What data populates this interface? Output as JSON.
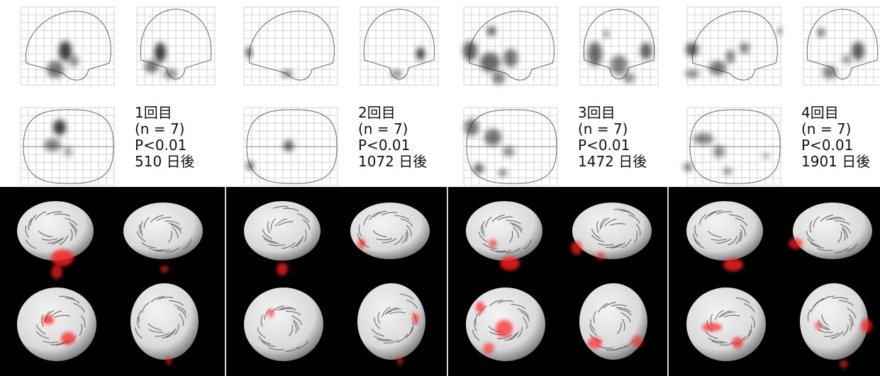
{
  "sessions": [
    {
      "session_label": "1回目",
      "n_label": "(n = 7)",
      "p_label": "P<0.01",
      "days_label": "510 日後"
    },
    {
      "session_label": "2回目",
      "n_label": "(n = 7)",
      "p_label": "P<0.01",
      "days_label": "1072 日後"
    },
    {
      "session_label": "3回目",
      "n_label": "(n = 7)",
      "p_label": "P<0.01",
      "days_label": "1472 日後"
    },
    {
      "session_label": "4回目",
      "n_label": "(n = 7)",
      "p_label": "P<0.01",
      "days_label": "1901 日後"
    }
  ],
  "colors": {
    "grid_line": "#c4c4c4",
    "outline": "#666666",
    "activation_dark": "#1a1a1a",
    "overlay_red": "#ff2020",
    "render_background": "#000000",
    "brain_surface": "#d9d9d9"
  }
}
